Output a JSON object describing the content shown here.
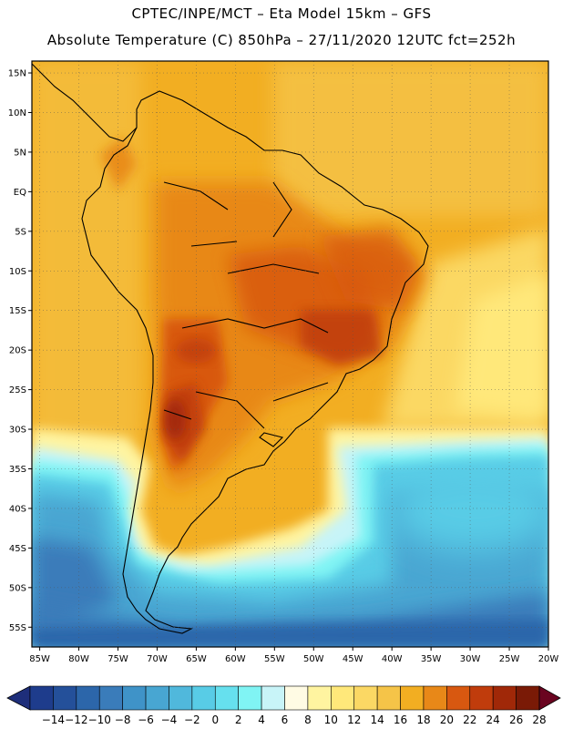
{
  "title": {
    "line1": "CPTEC/INPE/MCT –  Eta Model 15km – GFS",
    "line2": "Absolute Temperature (C) 850hPa – 27/11/2020 12UTC fct=252h"
  },
  "map": {
    "lat_labels": [
      "15N",
      "10N",
      "5N",
      "EQ",
      "5S",
      "10S",
      "15S",
      "20S",
      "25S",
      "30S",
      "35S",
      "40S",
      "45S",
      "50S",
      "55S"
    ],
    "lon_labels": [
      "85W",
      "80W",
      "75W",
      "70W",
      "65W",
      "60W",
      "55W",
      "50W",
      "45W",
      "40W",
      "35W",
      "30W",
      "25W",
      "20W"
    ],
    "lat_range": [
      -57.5,
      16.5
    ],
    "lon_range": [
      -86,
      -20
    ],
    "gridlines": "dotted"
  },
  "colorbar": {
    "labels": [
      "-14",
      "-12",
      "-10",
      "-8",
      "-6",
      "-4",
      "-2",
      "0",
      "2",
      "4",
      "6",
      "8",
      "10",
      "12",
      "14",
      "16",
      "18",
      "20",
      "22",
      "24",
      "26",
      "28"
    ],
    "colors": [
      "#1e3c8c",
      "#24509a",
      "#2c66aa",
      "#3a7cba",
      "#3f93c8",
      "#48a6d2",
      "#50b8dc",
      "#58cce6",
      "#66e0ee",
      "#80f4f4",
      "#c8f4f8",
      "#fffbe4",
      "#fff4a0",
      "#ffe87a",
      "#fbd864",
      "#f5c448",
      "#f2ae22",
      "#e88818",
      "#d85810",
      "#c03c0c",
      "#a02808",
      "#7a1a06"
    ],
    "under_color": "#1e2e7a",
    "over_color": "#6a0420"
  }
}
